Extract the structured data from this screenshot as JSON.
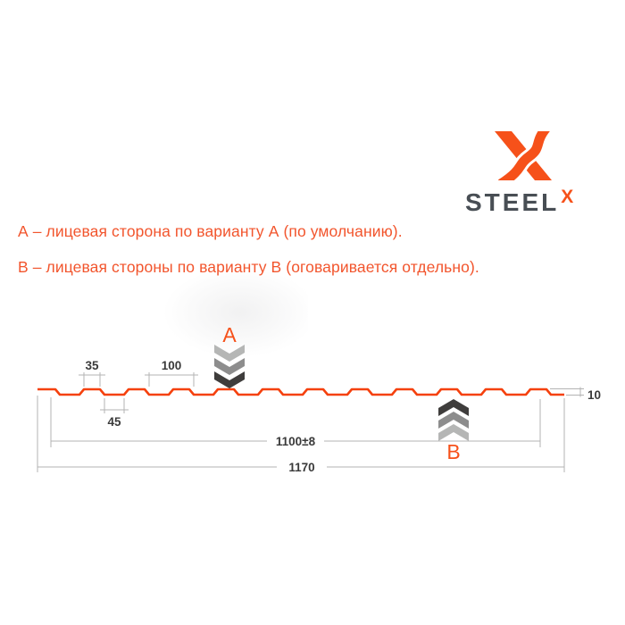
{
  "logo": {
    "wordmark": "STEEL",
    "x_mark": "X"
  },
  "notes": {
    "line_a": "А – лицевая сторона по варианту А (по умолчанию).",
    "line_b": "В – лицевая стороны по варианту В (оговаривается отдельно)."
  },
  "drawing": {
    "marker_a": "A",
    "marker_b": "B",
    "dims": {
      "rib_top_width": "35",
      "pitch": "100",
      "rib_base_width": "45",
      "profile_height": "10",
      "working_width": "1100±8",
      "overall_width": "1170"
    }
  },
  "colors": {
    "accent": "#f6511a",
    "note-text": "#f2552d",
    "profile": "#f5410e",
    "dim-line": "#b3b3b3",
    "dim-text": "#3a3a3a",
    "steel-text": "#484e54",
    "chevron-light": "#b5b6b5",
    "chevron-mid": "#8d8d8d",
    "chevron-dark": "#3f3d3c"
  }
}
